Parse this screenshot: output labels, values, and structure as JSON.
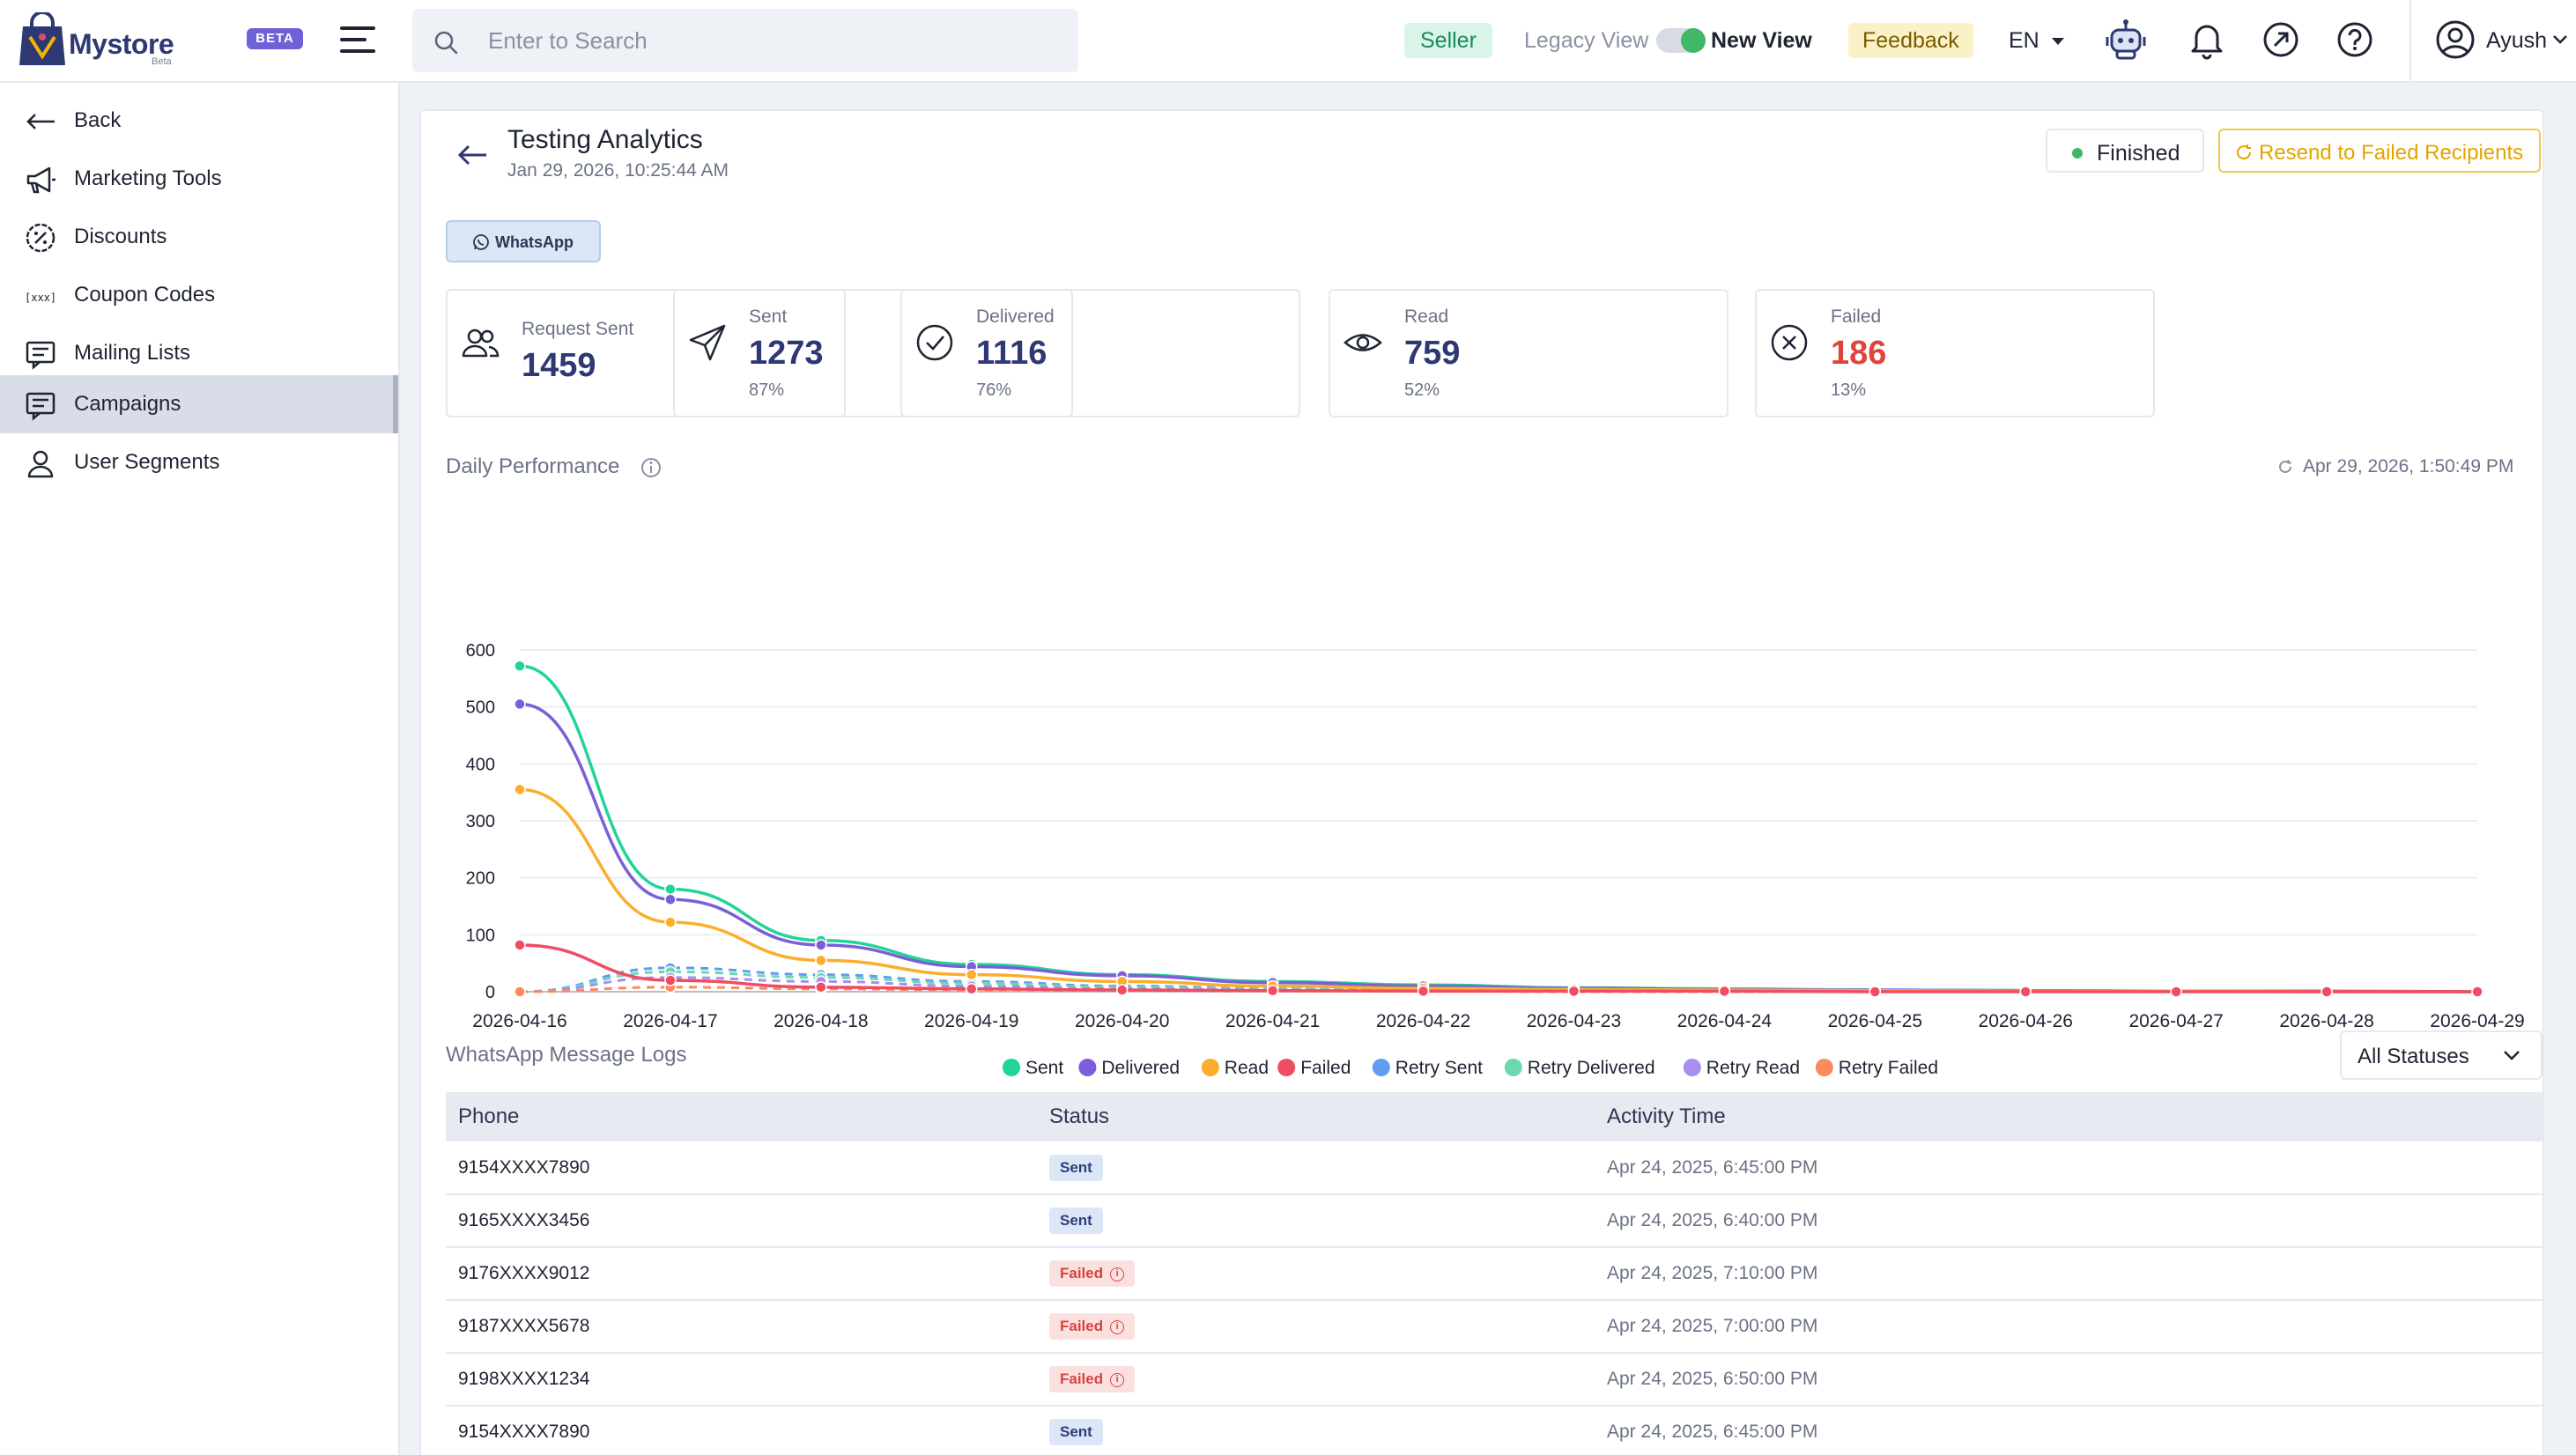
{
  "header": {
    "brand": "Mystore",
    "brand_sub": "Beta",
    "beta_badge": "BETA",
    "search_placeholder": "Enter to Search",
    "seller": "Seller",
    "legacy_view": "Legacy View",
    "new_view": "New View",
    "feedback": "Feedback",
    "language": "EN",
    "user_name": "Ayush"
  },
  "sidebar": {
    "items": [
      {
        "label": "Back",
        "icon": "back-arrow-icon"
      },
      {
        "label": "Marketing Tools",
        "icon": "megaphone-icon"
      },
      {
        "label": "Discounts",
        "icon": "percent-badge-icon"
      },
      {
        "label": "Coupon Codes",
        "icon": "coupon-code-icon"
      },
      {
        "label": "Mailing Lists",
        "icon": "mailing-list-icon"
      },
      {
        "label": "Campaigns",
        "icon": "campaign-icon",
        "active": true
      },
      {
        "label": "User Segments",
        "icon": "user-icon"
      }
    ]
  },
  "campaign": {
    "title": "Testing Analytics",
    "date": "Jan 29, 2026, 10:25:44 AM",
    "status": "Finished",
    "resend_label": "Resend to Failed Recipients",
    "channel_tab": "WhatsApp"
  },
  "stats": [
    {
      "label": "Request Sent",
      "value": "1459",
      "pct": "",
      "color": "#2e3873",
      "icon": "users-icon"
    },
    {
      "label": "Sent",
      "value": "1273",
      "pct": "87%",
      "color": "#2e3873",
      "icon": "send-icon"
    },
    {
      "label": "Delivered",
      "value": "1116",
      "pct": "76%",
      "color": "#2e3873",
      "icon": "check-circle-icon"
    },
    {
      "label": "Read",
      "value": "759",
      "pct": "52%",
      "color": "#2e3873",
      "icon": "eye-icon"
    },
    {
      "label": "Failed",
      "value": "186",
      "pct": "13%",
      "color": "#e0443c",
      "icon": "x-circle-icon"
    }
  ],
  "performance": {
    "title": "Daily Performance",
    "refreshed": "Apr 29, 2026, 1:50:49 PM"
  },
  "chart_data": {
    "type": "line",
    "title": "",
    "xlabel": "",
    "ylabel": "",
    "ylim": [
      0,
      600
    ],
    "yticks": [
      0,
      100,
      200,
      300,
      400,
      500,
      600
    ],
    "grid": true,
    "legend_position": "bottom",
    "x": [
      "2026-04-16",
      "2026-04-17",
      "2026-04-18",
      "2026-04-19",
      "2026-04-20",
      "2026-04-21",
      "2026-04-22",
      "2026-04-23",
      "2026-04-24",
      "2026-04-25",
      "2026-04-26",
      "2026-04-27",
      "2026-04-28",
      "2026-04-29"
    ],
    "series": [
      {
        "name": "Sent",
        "color": "#22d39a",
        "dashed": false,
        "values": [
          572,
          180,
          90,
          48,
          30,
          18,
          12,
          7,
          5,
          3,
          2,
          1,
          1,
          0
        ]
      },
      {
        "name": "Delivered",
        "color": "#7b5fd8",
        "dashed": false,
        "values": [
          505,
          162,
          82,
          44,
          28,
          16,
          10,
          6,
          4,
          3,
          2,
          1,
          1,
          0
        ]
      },
      {
        "name": "Read",
        "color": "#fbae2c",
        "dashed": false,
        "values": [
          355,
          122,
          55,
          30,
          18,
          10,
          6,
          4,
          3,
          2,
          1,
          1,
          0,
          0
        ]
      },
      {
        "name": "Failed",
        "color": "#f04d62",
        "dashed": false,
        "values": [
          82,
          20,
          8,
          5,
          3,
          2,
          1,
          1,
          1,
          0,
          0,
          0,
          0,
          0
        ]
      },
      {
        "name": "Retry Sent",
        "color": "#5f9df2",
        "dashed": true,
        "values": [
          0,
          42,
          30,
          18,
          10,
          6,
          3,
          2,
          1,
          1,
          0,
          0,
          0,
          0
        ]
      },
      {
        "name": "Retry Delivered",
        "color": "#6ad9ad",
        "dashed": true,
        "values": [
          0,
          35,
          25,
          15,
          8,
          5,
          3,
          2,
          1,
          0,
          0,
          0,
          0,
          0
        ]
      },
      {
        "name": "Retry Read",
        "color": "#a98df0",
        "dashed": true,
        "values": [
          0,
          25,
          18,
          10,
          5,
          3,
          2,
          1,
          0,
          0,
          0,
          0,
          0,
          0
        ]
      },
      {
        "name": "Retry Failed",
        "color": "#fb8a5c",
        "dashed": true,
        "values": [
          0,
          8,
          5,
          3,
          2,
          1,
          1,
          0,
          0,
          0,
          0,
          0,
          0,
          0
        ]
      }
    ]
  },
  "logs": {
    "title": "WhatsApp Message Logs",
    "filter": "All Statuses",
    "columns": [
      "Phone",
      "Status",
      "Activity Time"
    ],
    "rows": [
      {
        "phone": "9154XXXX7890",
        "status": "Sent",
        "time": "Apr 24, 2025, 6:45:00 PM"
      },
      {
        "phone": "9165XXXX3456",
        "status": "Sent",
        "time": "Apr 24, 2025, 6:40:00 PM"
      },
      {
        "phone": "9176XXXX9012",
        "status": "Failed",
        "time": "Apr 24, 2025, 7:10:00 PM"
      },
      {
        "phone": "9187XXXX5678",
        "status": "Failed",
        "time": "Apr 24, 2025, 7:00:00 PM"
      },
      {
        "phone": "9198XXXX1234",
        "status": "Failed",
        "time": "Apr 24, 2025, 6:50:00 PM"
      },
      {
        "phone": "9154XXXX7890",
        "status": "Sent",
        "time": "Apr 24, 2025, 6:45:00 PM"
      }
    ]
  }
}
